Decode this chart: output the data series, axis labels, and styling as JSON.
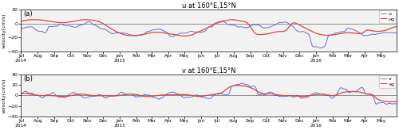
{
  "title_a": "u at 160°E,15°N",
  "title_b": "v at 160°E,15°N",
  "ylabel_a": "velocity(cm/s)",
  "ylabel_b": "velocity(cm/s)",
  "legend_a": [
    "u",
    "ug"
  ],
  "legend_b": [
    "v",
    "vg"
  ],
  "ylim_a": [
    -40,
    20
  ],
  "ylim_b": [
    -40,
    40
  ],
  "yticks_a": [
    -40,
    -20,
    0,
    20
  ],
  "yticks_b": [
    -40,
    -20,
    0,
    20,
    40
  ],
  "color_u": "#5555cc",
  "color_ug": "#dd4444",
  "color_v": "#5555cc",
  "color_vg": "#dd4444",
  "panel_a": "(a)",
  "panel_b": "(b)",
  "background": "#f2f2f2",
  "linewidth_u": 0.6,
  "linewidth_ug": 0.9,
  "figsize": [
    5.0,
    1.64
  ],
  "dpi": 100
}
